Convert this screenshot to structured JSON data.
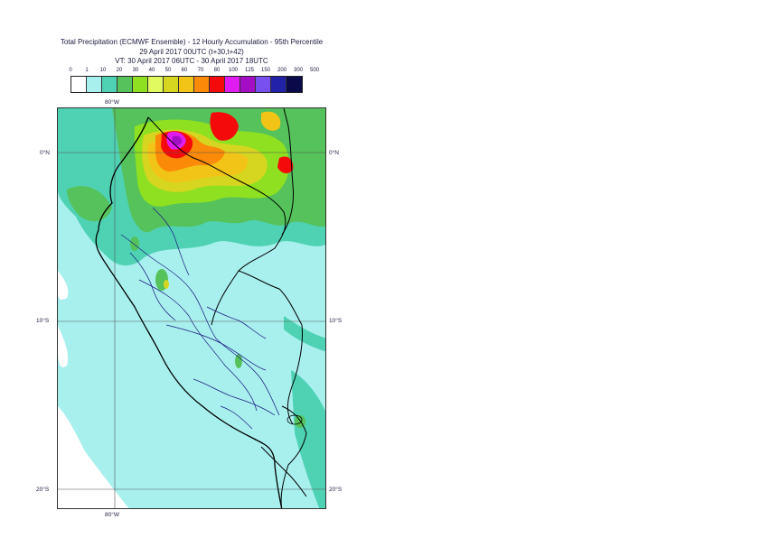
{
  "title": {
    "line1": "Total Precipitation (ECMWF Ensemble) - 12 Hourly Accumulation - 95th Percentile",
    "line2": "29 April 2017 00UTC (t+30,t+42)",
    "line3": "VT: 30 April 2017 06UTC - 30 April 2017 18UTC"
  },
  "scale": {
    "thresholds": [
      "0",
      "1",
      "10",
      "20",
      "30",
      "40",
      "50",
      "60",
      "70",
      "80",
      "100",
      "125",
      "150",
      "200",
      "300",
      "500"
    ],
    "colors": [
      "#ffffff",
      "#a8f0ee",
      "#4fd2b3",
      "#55c25b",
      "#8ee020",
      "#e0fa60",
      "#d6d620",
      "#f3c418",
      "#fb8a08",
      "#f40a0a",
      "#e11cf0",
      "#a40ec4",
      "#7950f0",
      "#2222a8",
      "#0a0a4a"
    ]
  },
  "map": {
    "lon_labels": {
      "top": "80°W",
      "bottom": "80°W"
    },
    "lat_labels": [
      {
        "left": "0°N",
        "right": "0°N"
      },
      {
        "left": "10°S",
        "right": "10°S"
      },
      {
        "left": "20°S",
        "right": "20°S"
      }
    ],
    "colors": {
      "ocean_low": "#a8f0ee",
      "land_low": "#a8f0ee",
      "band_10": "#4fd2b3",
      "band_20": "#55c25b",
      "band_30": "#8ee020",
      "band_50": "#d6d620",
      "band_60": "#f3c418",
      "band_70": "#fb8a08",
      "band_80": "#f40a0a",
      "band_100": "#e11cf0",
      "band_125": "#a40ec4",
      "border": "#1a1a80",
      "coast": "#000000",
      "grid": "#555555"
    }
  }
}
